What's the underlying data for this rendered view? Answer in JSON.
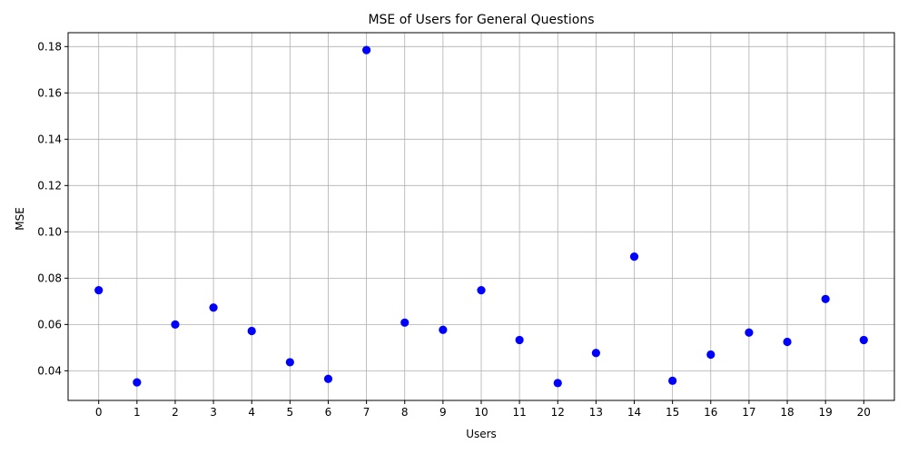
{
  "chart_data": {
    "type": "scatter",
    "title": "MSE of Users for General Questions",
    "xlabel": "Users",
    "ylabel": "MSE",
    "x": [
      0,
      1,
      2,
      3,
      4,
      5,
      6,
      7,
      8,
      9,
      10,
      11,
      12,
      13,
      14,
      15,
      16,
      17,
      18,
      19,
      20
    ],
    "y": [
      0.0748,
      0.035,
      0.06,
      0.0673,
      0.0572,
      0.0437,
      0.0365,
      0.1785,
      0.0608,
      0.0577,
      0.0748,
      0.0533,
      0.0347,
      0.0477,
      0.0893,
      0.0357,
      0.047,
      0.0565,
      0.0525,
      0.071,
      0.0533
    ],
    "xlim": [
      -0.8,
      20.8
    ],
    "ylim": [
      0.0272,
      0.186
    ],
    "xticks": [
      0,
      1,
      2,
      3,
      4,
      5,
      6,
      7,
      8,
      9,
      10,
      11,
      12,
      13,
      14,
      15,
      16,
      17,
      18,
      19,
      20
    ],
    "yticks": [
      0.04,
      0.06,
      0.08,
      0.1,
      0.12,
      0.14,
      0.16,
      0.18
    ],
    "ytick_labels": [
      "0.04",
      "0.06",
      "0.08",
      "0.10",
      "0.12",
      "0.14",
      "0.16",
      "0.18"
    ],
    "grid": true,
    "marker_color": "#0000ff"
  }
}
